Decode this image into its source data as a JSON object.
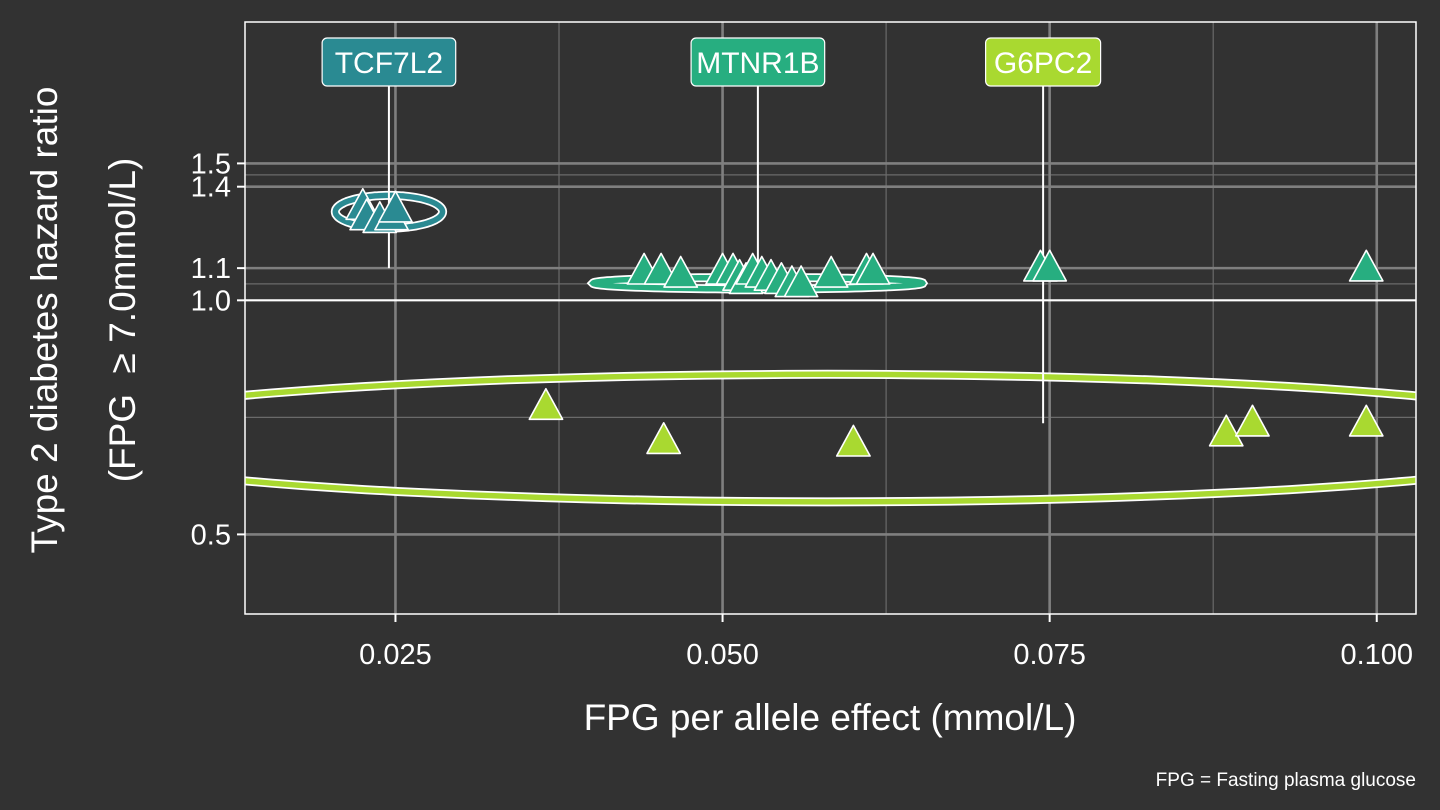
{
  "chart_data": {
    "type": "scatter",
    "title": "",
    "xlabel": "FPG per allele effect (mmol/L)",
    "ylabel_line1": "Type 2 diabetes hazard ratio",
    "ylabel_line2": "(FPG  ≥ 7.0mmol/L)",
    "caption": "FPG = Fasting plasma glucose",
    "x_scale": "linear",
    "y_scale": "log",
    "xlim": [
      0.0135,
      0.103
    ],
    "ylim": [
      0.395,
      2.28
    ],
    "x_ticks": [
      {
        "value": 0.025,
        "label": "0.025"
      },
      {
        "value": 0.05,
        "label": "0.050"
      },
      {
        "value": 0.075,
        "label": "0.075"
      },
      {
        "value": 0.1,
        "label": "0.100"
      }
    ],
    "y_ticks": [
      {
        "value": 0.5,
        "label": "0.5"
      },
      {
        "value": 1.0,
        "label": "1.0"
      },
      {
        "value": 1.1,
        "label": "1.1"
      },
      {
        "value": 1.4,
        "label": "1.4"
      },
      {
        "value": 1.5,
        "label": "1.5"
      }
    ],
    "y_minor_gridlines": [
      0.707,
      1.05,
      1.45
    ],
    "reference_line_y": 1.0,
    "grid": true,
    "marker": "triangle",
    "colors": {
      "background": "#323232",
      "grid_major": "#7f7f7f",
      "grid_minor": "#6a6a6a",
      "panel_border": "#ffffff",
      "text": "#ffffff",
      "TCF7L2": "#2a8a92",
      "MTNR1B": "#27ae80",
      "G6PC2": "#a9d930"
    },
    "series": [
      {
        "name": "TCF7L2",
        "color": "#2a8a92",
        "label_x": 0.0245,
        "label_y": 1.1,
        "ellipse": {
          "cx": 0.0245,
          "cy": 1.3,
          "rx": 0.0041,
          "ry_log10": 0.021
        },
        "points": [
          {
            "x": 0.0225,
            "y": 1.32
          },
          {
            "x": 0.0228,
            "y": 1.28
          },
          {
            "x": 0.0238,
            "y": 1.27
          },
          {
            "x": 0.0247,
            "y": 1.28
          },
          {
            "x": 0.025,
            "y": 1.31
          }
        ]
      },
      {
        "name": "MTNR1B",
        "color": "#27ae80",
        "label_x": 0.0527,
        "label_y": 1.07,
        "ellipse": {
          "cx": 0.0527,
          "cy": 1.052,
          "rx": 0.0126,
          "ry_log10": 0.0075
        },
        "points": [
          {
            "x": 0.044,
            "y": 1.09
          },
          {
            "x": 0.0453,
            "y": 1.09
          },
          {
            "x": 0.0468,
            "y": 1.08
          },
          {
            "x": 0.05,
            "y": 1.09
          },
          {
            "x": 0.0508,
            "y": 1.09
          },
          {
            "x": 0.0513,
            "y": 1.07
          },
          {
            "x": 0.0518,
            "y": 1.06
          },
          {
            "x": 0.0523,
            "y": 1.09
          },
          {
            "x": 0.053,
            "y": 1.08
          },
          {
            "x": 0.0537,
            "y": 1.07
          },
          {
            "x": 0.0545,
            "y": 1.06
          },
          {
            "x": 0.0553,
            "y": 1.05
          },
          {
            "x": 0.056,
            "y": 1.05
          },
          {
            "x": 0.0583,
            "y": 1.08
          },
          {
            "x": 0.061,
            "y": 1.09
          },
          {
            "x": 0.0615,
            "y": 1.09
          },
          {
            "x": 0.0743,
            "y": 1.1
          },
          {
            "x": 0.075,
            "y": 1.1
          },
          {
            "x": 0.0992,
            "y": 1.1
          }
        ]
      },
      {
        "name": "G6PC2",
        "color": "#a9d930",
        "label_x": 0.0745,
        "label_y": 0.695,
        "ellipse": {
          "cx": 0.058,
          "cy": 0.665,
          "rx": 0.06,
          "ry_log10": 0.082
        },
        "points": [
          {
            "x": 0.0365,
            "y": 0.73
          },
          {
            "x": 0.0455,
            "y": 0.66
          },
          {
            "x": 0.06,
            "y": 0.655
          },
          {
            "x": 0.0885,
            "y": 0.675
          },
          {
            "x": 0.0905,
            "y": 0.695
          },
          {
            "x": 0.0992,
            "y": 0.695
          }
        ]
      }
    ]
  }
}
